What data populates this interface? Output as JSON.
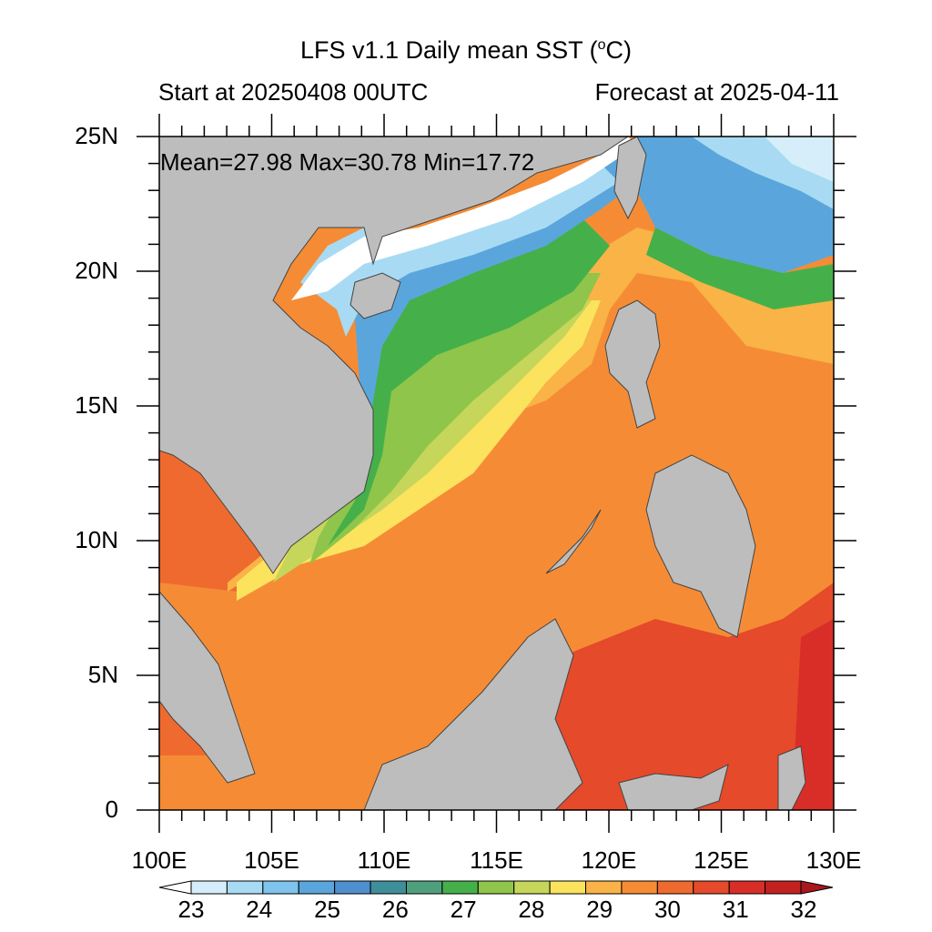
{
  "header": {
    "title_prefix": "LFS v1.1 Daily mean SST (",
    "title_sup": "o",
    "title_suffix": "C)",
    "start_label": "Start at 20250408 00UTC",
    "forecast_label": "Forecast at 2025-04-11"
  },
  "stats_label": "Mean=27.98  Max=30.78  Min=17.72",
  "map": {
    "lon_range": [
      100,
      130
    ],
    "lat_range": [
      0,
      25
    ],
    "lon_ticks": [
      "100E",
      "105E",
      "110E",
      "115E",
      "120E",
      "125E",
      "130E"
    ],
    "lat_ticks": [
      "0",
      "5N",
      "10N",
      "15N",
      "20N",
      "25N"
    ],
    "land_color": "#bdbdbd"
  },
  "colorbar": {
    "labels": [
      "23",
      "24",
      "25",
      "26",
      "27",
      "28",
      "29",
      "30",
      "31",
      "32"
    ],
    "colors": [
      "#ffffff",
      "#d6eefa",
      "#a8dbf3",
      "#7ec4ec",
      "#5aa6dc",
      "#4e8fcf",
      "#3f8f9a",
      "#4ea07c",
      "#45b04a",
      "#8fc54a",
      "#c5d65a",
      "#fbe35e",
      "#f9b346",
      "#f58c35",
      "#ef6a2e",
      "#e54a2b",
      "#d82e27",
      "#c2221f",
      "#a8181c"
    ]
  }
}
